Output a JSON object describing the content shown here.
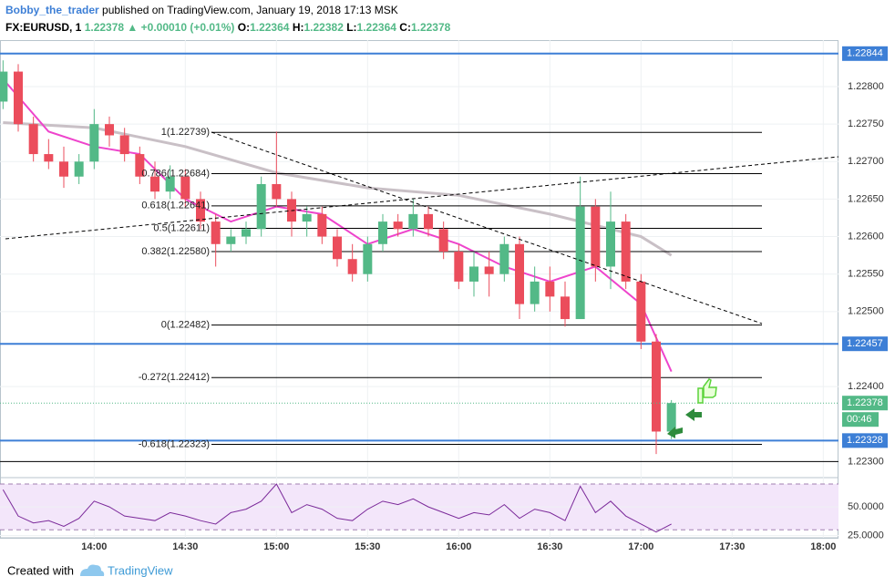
{
  "header": {
    "author": "Bobby_the_trader",
    "published": "published on TradingView.com, January 19, 2018 17:13 MSK",
    "symbol": "FX:EURUSD, 1",
    "last": "1.22378",
    "change": "▲ +0.00010 (+0.01%)",
    "ohlc": [
      {
        "label": "O:",
        "value": "1.22364"
      },
      {
        "label": "H:",
        "value": "1.22382"
      },
      {
        "label": "L:",
        "value": "1.22364"
      },
      {
        "label": "C:",
        "value": "1.22378"
      }
    ]
  },
  "chart_data": {
    "type": "candlestick",
    "x": [
      "13:30",
      "13:35",
      "13:40",
      "13:45",
      "13:50",
      "13:55",
      "14:00",
      "14:05",
      "14:10",
      "14:15",
      "14:20",
      "14:25",
      "14:30",
      "14:35",
      "14:40",
      "14:45",
      "14:50",
      "14:55",
      "15:00",
      "15:05",
      "15:10",
      "15:15",
      "15:20",
      "15:25",
      "15:30",
      "15:35",
      "15:40",
      "15:45",
      "15:50",
      "15:55",
      "16:00",
      "16:05",
      "16:10",
      "16:15",
      "16:20",
      "16:25",
      "16:30",
      "16:35",
      "16:40",
      "16:45",
      "16:50",
      "16:55",
      "17:00",
      "17:05",
      "17:10"
    ],
    "open": [
      1.2278,
      1.2282,
      1.2275,
      1.2271,
      1.227,
      1.2268,
      1.227,
      1.2275,
      1.22735,
      1.2271,
      1.2268,
      1.2266,
      1.2268,
      1.2265,
      1.2262,
      1.2259,
      1.226,
      1.2261,
      1.2267,
      1.2265,
      1.2262,
      1.2263,
      1.226,
      1.2257,
      1.2255,
      1.2259,
      1.2262,
      1.2261,
      1.2263,
      1.2261,
      1.2258,
      1.2254,
      1.2256,
      1.2255,
      1.2259,
      1.2251,
      1.2254,
      1.2252,
      1.2249,
      1.2264,
      1.2256,
      1.2262,
      1.2254,
      1.2246,
      1.2234
    ],
    "high": [
      1.22835,
      1.2283,
      1.2276,
      1.2273,
      1.2272,
      1.2271,
      1.2277,
      1.2276,
      1.22745,
      1.2272,
      1.227,
      1.22695,
      1.2269,
      1.2266,
      1.2263,
      1.2261,
      1.2262,
      1.2268,
      1.2274,
      1.2266,
      1.2264,
      1.2264,
      1.2261,
      1.2259,
      1.226,
      1.2263,
      1.2263,
      1.2265,
      1.2264,
      1.2262,
      1.2259,
      1.2258,
      1.2258,
      1.226,
      1.226,
      1.2256,
      1.2256,
      1.2254,
      1.2268,
      1.2265,
      1.2266,
      1.2263,
      1.2255,
      1.2247,
      1.22382
    ],
    "low": [
      1.2277,
      1.2274,
      1.227,
      1.2269,
      1.22665,
      1.2267,
      1.2269,
      1.2272,
      1.227,
      1.2267,
      1.2265,
      1.2265,
      1.2264,
      1.2261,
      1.2256,
      1.2258,
      1.2259,
      1.226,
      1.2264,
      1.226,
      1.226,
      1.2259,
      1.2256,
      1.2254,
      1.2254,
      1.2258,
      1.226,
      1.226,
      1.226,
      1.2257,
      1.2253,
      1.2252,
      1.2252,
      1.2254,
      1.2249,
      1.225,
      1.225,
      1.2248,
      1.2249,
      1.2254,
      1.2253,
      1.2253,
      1.2245,
      1.2231,
      1.2233
    ],
    "close": [
      1.2282,
      1.2275,
      1.2271,
      1.227,
      1.2268,
      1.227,
      1.2275,
      1.22735,
      1.2271,
      1.2268,
      1.2266,
      1.2268,
      1.2265,
      1.2262,
      1.2259,
      1.226,
      1.2261,
      1.2267,
      1.2265,
      1.2262,
      1.2263,
      1.226,
      1.2257,
      1.2255,
      1.2259,
      1.2262,
      1.2261,
      1.2263,
      1.2261,
      1.2258,
      1.2254,
      1.2256,
      1.2255,
      1.2259,
      1.2251,
      1.2254,
      1.2252,
      1.2249,
      1.2264,
      1.2256,
      1.2262,
      1.2254,
      1.2246,
      1.2234,
      1.22378
    ],
    "up_color": "#53b987",
    "down_color": "#eb4d5c",
    "xlim": [
      "13:29",
      "18:05"
    ],
    "xticks": [
      "14:00",
      "14:30",
      "15:00",
      "15:30",
      "16:00",
      "16:30",
      "17:00",
      "17:30",
      "18:00"
    ],
    "ylim": [
      1.22281,
      1.22862
    ],
    "yticks": [
      {
        "value": 1.223,
        "label": "1.22300"
      },
      {
        "value": 1.224,
        "label": "1.22400"
      },
      {
        "value": 1.225,
        "label": "1.22500"
      },
      {
        "value": 1.2255,
        "label": "1.22550"
      },
      {
        "value": 1.226,
        "label": "1.22600"
      },
      {
        "value": 1.2265,
        "label": "1.22650"
      },
      {
        "value": 1.227,
        "label": "1.22700"
      },
      {
        "value": 1.2275,
        "label": "1.22750"
      },
      {
        "value": 1.228,
        "label": "1.22800"
      }
    ],
    "grid": true,
    "overlays": [
      {
        "color": "#c9c0c6",
        "x": [
          "13:30",
          "14:00",
          "14:30",
          "15:00",
          "15:30",
          "16:00",
          "16:30",
          "17:00",
          "17:10"
        ],
        "values": [
          1.22752,
          1.22745,
          1.2272,
          1.22685,
          1.22665,
          1.22655,
          1.2263,
          1.226,
          1.22575
        ]
      },
      {
        "color": "#ee44cc",
        "x": [
          "13:30",
          "13:45",
          "14:00",
          "14:15",
          "14:30",
          "14:45",
          "15:00",
          "15:15",
          "15:30",
          "15:45",
          "16:00",
          "16:15",
          "16:30",
          "16:45",
          "17:00",
          "17:10"
        ],
        "values": [
          1.2281,
          1.2274,
          1.2272,
          1.2271,
          1.2265,
          1.2262,
          1.2264,
          1.2263,
          1.2259,
          1.2261,
          1.2259,
          1.2256,
          1.2254,
          1.2256,
          1.2251,
          1.2242
        ]
      }
    ],
    "hlines": [
      {
        "price": 1.22844,
        "color": "#3d7fd6"
      },
      {
        "price": 1.22457,
        "color": "#3d7fd6"
      },
      {
        "price": 1.22328,
        "color": "#3d7fd6"
      },
      {
        "price": 1.223,
        "color": "#000000"
      }
    ],
    "last_price": 1.22378,
    "last_color": "#53b987",
    "countdown": "00:46",
    "fib": [
      {
        "label": "1(1.22739)",
        "value": 1.22739
      },
      {
        "label": "0.786(1.22684)",
        "value": 1.22684
      },
      {
        "label": "0.618(1.22641)",
        "value": 1.22641
      },
      {
        "label": "0.5(1.22611)",
        "value": 1.22611
      },
      {
        "label": "0.382(1.22580)",
        "value": 1.2258
      },
      {
        "label": "0(1.22482)",
        "value": 1.22482
      },
      {
        "label": "-0.272(1.22412)",
        "value": 1.22412
      },
      {
        "label": "-0.618(1.22323)",
        "value": 1.22323
      }
    ],
    "rsi": {
      "color": "#7b2a9a",
      "values": [
        65,
        42,
        36,
        38,
        33,
        40,
        55,
        50,
        42,
        40,
        38,
        45,
        42,
        38,
        35,
        45,
        48,
        55,
        70,
        45,
        52,
        48,
        40,
        38,
        48,
        55,
        52,
        57,
        50,
        45,
        40,
        45,
        43,
        52,
        40,
        48,
        45,
        38,
        68,
        45,
        55,
        42,
        35,
        28,
        35
      ],
      "ylim": [
        23,
        74
      ],
      "band": [
        30,
        70
      ],
      "yticks": [
        {
          "value": 50,
          "label": "50.0000"
        },
        {
          "value": 25,
          "label": "25.0000"
        }
      ]
    }
  },
  "footer": {
    "created": "Created with",
    "brand": "TradingView"
  }
}
